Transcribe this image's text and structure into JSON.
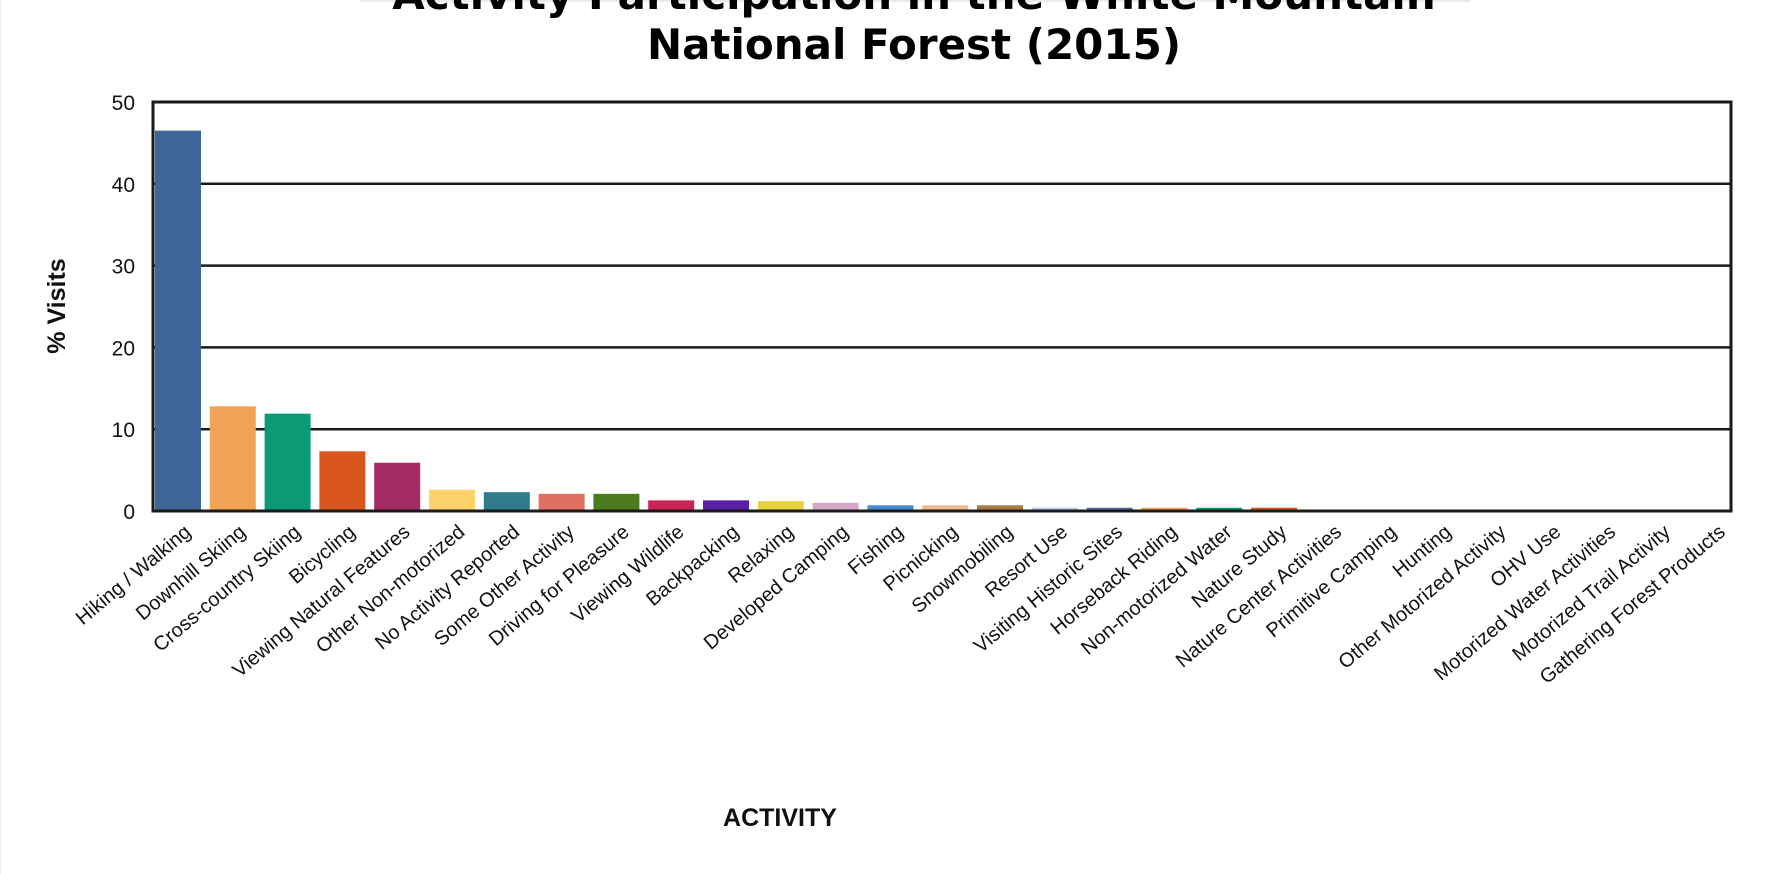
{
  "chart_data": {
    "type": "bar",
    "title_lines": [
      "Activity Participation in the White Mountain",
      "National Forest (2015)"
    ],
    "xlabel": "ACTIVITY",
    "ylabel": "% Visits",
    "ylim": [
      0,
      50
    ],
    "yticks": [
      "0",
      "10",
      "20",
      "30",
      "40",
      "50"
    ],
    "grid": true,
    "categories": [
      "Hiking / Walking",
      "Downhill Skiing",
      "Cross-country Skiing",
      "Bicycling",
      "Viewing Natural Features",
      "Other Non-motorized",
      "No Activity Reported",
      "Some Other Activity",
      "Driving for Pleasure",
      "Viewing Wildlife",
      "Backpacking",
      "Relaxing",
      "Developed Camping",
      "Fishing",
      "Picnicking",
      "Snowmobiling",
      "Resort Use",
      "Visiting Historic Sites",
      "Horseback Riding",
      "Non-motorized Water",
      "Nature Study",
      "Nature Center Activities",
      "Primitive Camping",
      "Hunting",
      "Other Motorized Activity",
      "OHV Use",
      "Motorized Water Activities",
      "Motorized Trail Activity",
      "Gathering Forest Products"
    ],
    "values": [
      46.5,
      12.8,
      11.9,
      7.3,
      5.9,
      2.6,
      2.3,
      2.1,
      2.1,
      1.3,
      1.3,
      1.2,
      1.0,
      0.7,
      0.7,
      0.7,
      0.4,
      0.4,
      0.4,
      0.4,
      0.4,
      0.05,
      0.05,
      0.05,
      0.05,
      0.05,
      0.05,
      0.05,
      0.05
    ],
    "colors": [
      "#3e6698",
      "#eea454",
      "#0a9a75",
      "#d9571f",
      "#a22b62",
      "#fbd36a",
      "#2f7b8e",
      "#e07062",
      "#4a7b1d",
      "#cc2456",
      "#5b1fa8",
      "#e4d23f",
      "#d4a6c8",
      "#4a8bd0",
      "#eebb8e",
      "#a87d44",
      "#b3c8e8",
      "#4e6a9a",
      "#eea454",
      "#0a9a75",
      "#d9571f",
      "#a22b62",
      "#fbd36a",
      "#2f7b8e",
      "#e07062",
      "#4a7b1d",
      "#cc2456",
      "#5b1fa8",
      "#e4d23f"
    ]
  }
}
